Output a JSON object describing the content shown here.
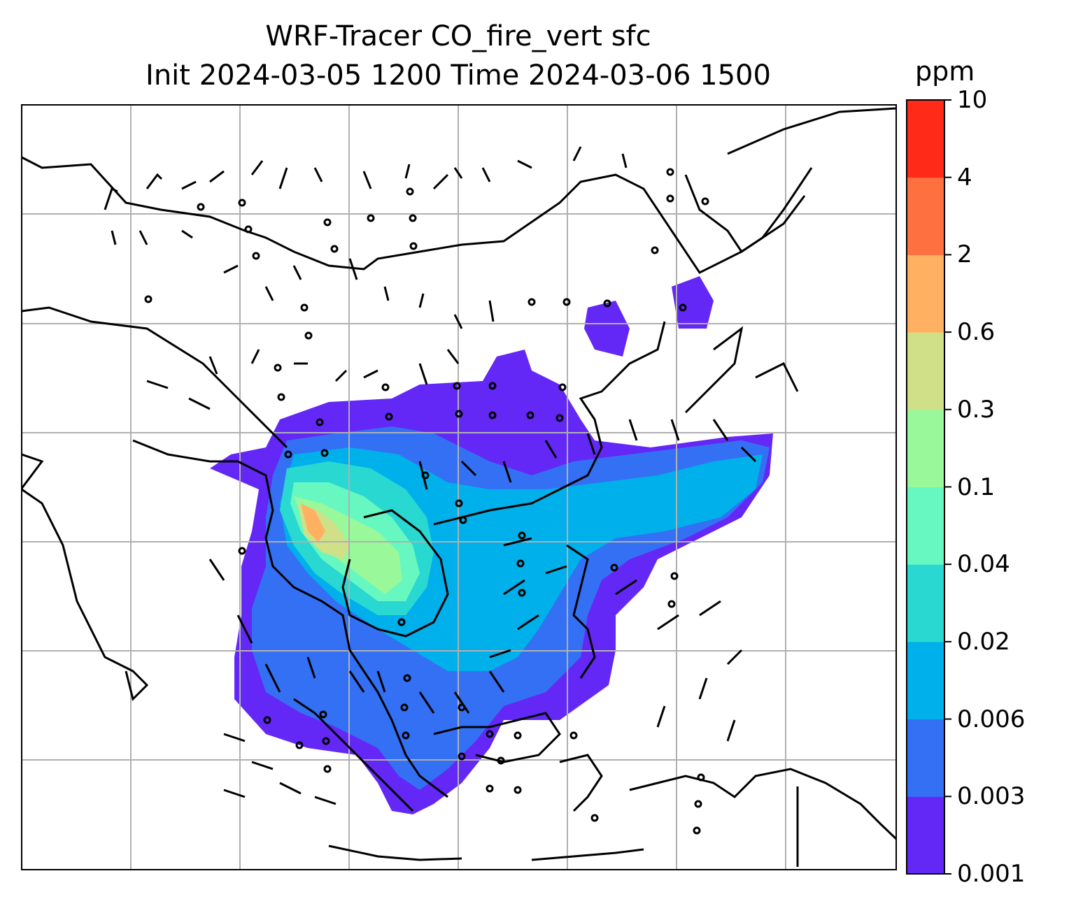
{
  "title": {
    "line1": "WRF-Tracer CO_fire_vert sfc",
    "line2": "Init 2024-03-05 1200 Time 2024-03-06 1500"
  },
  "colorbar": {
    "unit": "ppm",
    "levels": [
      "0.001",
      "0.003",
      "0.006",
      "0.02",
      "0.04",
      "0.1",
      "0.3",
      "0.6",
      "2",
      "4",
      "10"
    ],
    "colors": [
      "#6428f6",
      "#3470f4",
      "#00b0ea",
      "#2ad8d2",
      "#66f8c0",
      "#98f89a",
      "#cfe088",
      "#ffb060",
      "#ff7040",
      "#ff2a18"
    ]
  },
  "map": {
    "grid_color": "#b0b0b0",
    "coastline_color": "#000000",
    "wind_barbs": "black"
  }
}
